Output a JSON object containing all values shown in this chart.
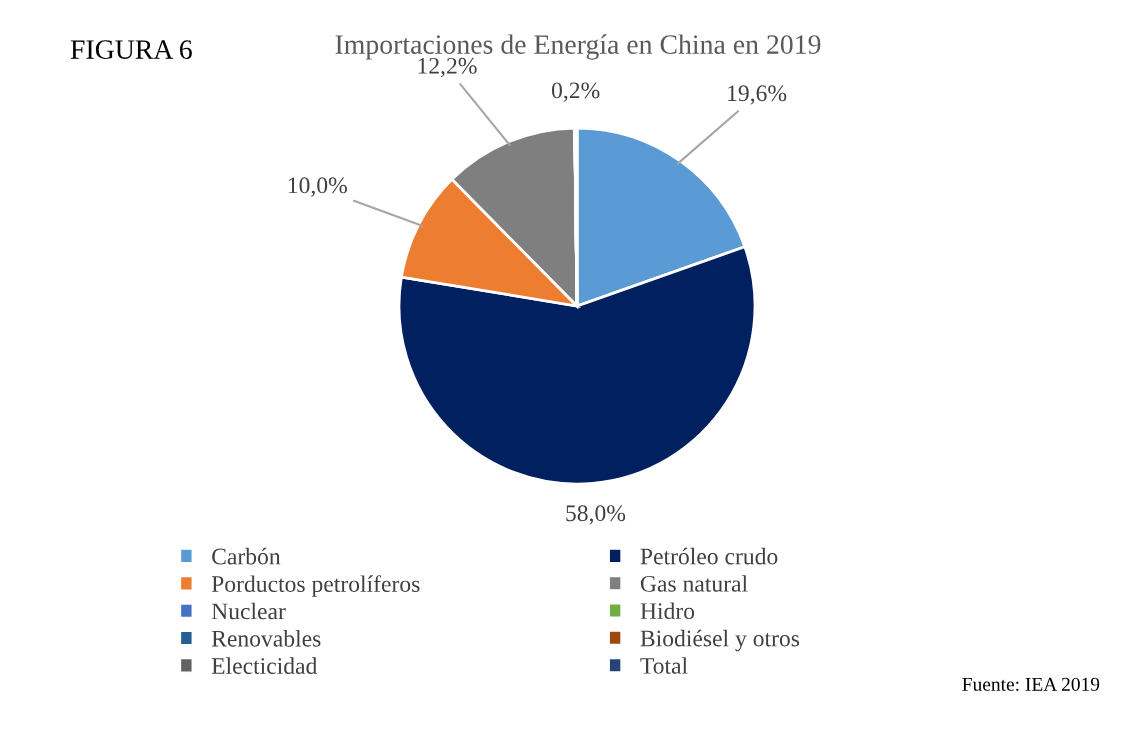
{
  "chart_data": {
    "type": "pie",
    "title": "Importaciones de Energía en China en 2019",
    "categories": [
      "Carbón",
      "Petróleo crudo",
      "Porductos petrolíferos",
      "Gas natural",
      "Nuclear",
      "Hidro",
      "Renovables",
      "Biodiésel y otros",
      "Electicidad",
      "Total"
    ],
    "values": [
      19.6,
      58.0,
      10.0,
      12.2,
      0,
      0,
      0,
      0,
      0.2,
      0
    ],
    "colors": [
      "#5b9bd5",
      "#002060",
      "#ed7d31",
      "#7f7f7f",
      "#4472c4",
      "#70ad47",
      "#255e91",
      "#9e480e",
      "#636363",
      "#264478"
    ],
    "value_labels": [
      "19,6%",
      "58,0%",
      "10,0%",
      "12,2%",
      null,
      null,
      null,
      null,
      "0,2%",
      null
    ],
    "legend": "bottom",
    "annotations": [
      "FIGURA 6",
      "Fuente: IEA 2019"
    ]
  }
}
